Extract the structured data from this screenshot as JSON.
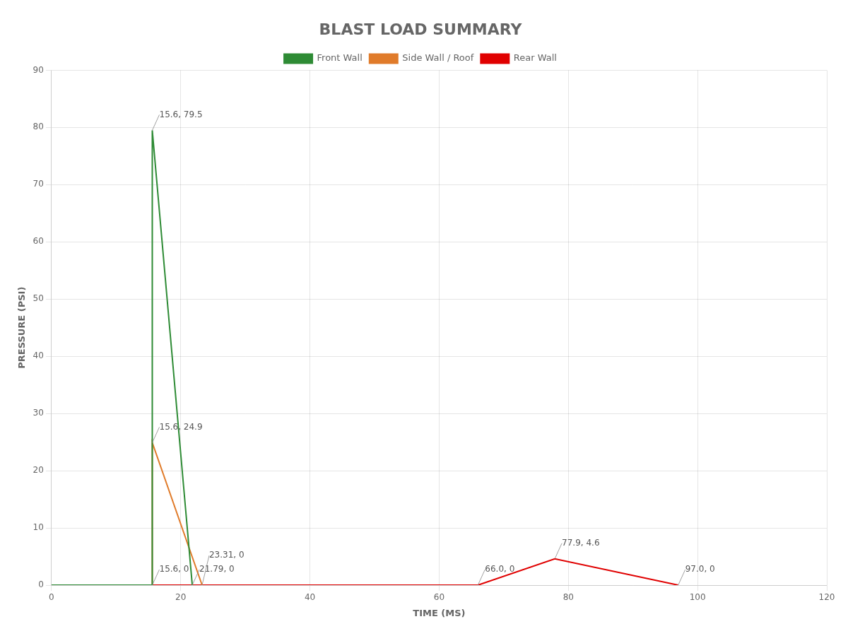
{
  "chart_data": {
    "type": "line",
    "title": "BLAST LOAD SUMMARY",
    "x_label": "TIME (MS)",
    "y_label": "PRESSURE (PSI)",
    "xlim": [
      0,
      120
    ],
    "ylim": [
      0,
      90
    ],
    "xticks": [
      0,
      20,
      40,
      60,
      80,
      100,
      120
    ],
    "yticks": [
      0,
      10,
      20,
      30,
      40,
      50,
      60,
      70,
      80,
      90
    ],
    "grid": true,
    "legend": "top",
    "series": [
      {
        "name": "Front Wall",
        "color": "#2e8b35",
        "x": [
          0,
          15.6,
          15.6,
          21.79
        ],
        "values": [
          0,
          0,
          79.5,
          0
        ]
      },
      {
        "name": "Side Wall / Roof",
        "color": "#e07b2a",
        "x": [
          0,
          15.6,
          15.6,
          23.31
        ],
        "values": [
          0,
          0,
          24.9,
          0
        ]
      },
      {
        "name": "Rear Wall",
        "color": "#e00000",
        "x": [
          0,
          66.0,
          66.0,
          77.9,
          97.0,
          97.0
        ],
        "values": [
          0,
          0,
          0,
          4.6,
          0,
          0
        ]
      }
    ],
    "annotations": [
      {
        "text": "15.6, 79.5",
        "x": 15.6,
        "y": 79.5
      },
      {
        "text": "15.6, 24.9",
        "x": 15.6,
        "y": 24.9
      },
      {
        "text": "15.6, 0",
        "x": 15.6,
        "y": 0
      },
      {
        "text": "21.79, 0",
        "x": 21.79,
        "y": 0
      },
      {
        "text": "23.31, 0",
        "x": 23.31,
        "y": 0
      },
      {
        "text": "66.0, 0",
        "x": 66.0,
        "y": 0
      },
      {
        "text": "77.9, 4.6",
        "x": 77.9,
        "y": 4.6
      },
      {
        "text": "97.0, 0",
        "x": 97.0,
        "y": 0
      }
    ]
  }
}
